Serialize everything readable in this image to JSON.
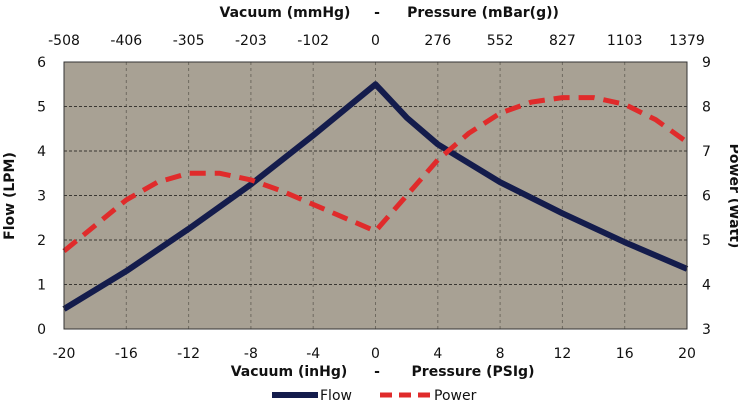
{
  "chart_data": {
    "type": "line",
    "top_axis": {
      "left_label": "Vacuum (mmHg)",
      "separator": "-",
      "right_label": "Pressure (mBar(g))",
      "ticks": [
        "-508",
        "-406",
        "-305",
        "-203",
        "-102",
        "0",
        "276",
        "552",
        "827",
        "1103",
        "1379"
      ]
    },
    "bottom_axis": {
      "left_label": "Vacuum (inHg)",
      "separator": "-",
      "right_label": "Pressure (PSIg)",
      "xlim": [
        -20,
        20
      ],
      "ticks": [
        -20,
        -16,
        -12,
        -8,
        -4,
        0,
        4,
        8,
        12,
        16,
        20
      ]
    },
    "left_axis": {
      "label": "Flow (LPM)",
      "ylim": [
        0,
        6
      ],
      "ticks": [
        0,
        1,
        2,
        3,
        4,
        5,
        6
      ]
    },
    "right_axis": {
      "label": "Power (Watt)",
      "ylim": [
        3,
        9
      ],
      "ticks": [
        3,
        4,
        5,
        6,
        7,
        8,
        9
      ]
    },
    "grid": true,
    "background_color": "#a8a194",
    "legend_position": "bottom-center",
    "series": [
      {
        "name": "Flow",
        "axis": "left",
        "color": "#141c4c",
        "style": "solid",
        "x": [
          -20,
          -16,
          -12,
          -8,
          -4,
          0,
          2,
          4,
          8,
          12,
          16,
          20
        ],
        "y": [
          0.45,
          1.3,
          2.25,
          3.25,
          4.35,
          5.5,
          4.75,
          4.15,
          3.3,
          2.6,
          1.95,
          1.35
        ]
      },
      {
        "name": "Power",
        "axis": "right",
        "color": "#e02b2b",
        "style": "dashed",
        "x": [
          -20,
          -16,
          -14,
          -12,
          -10,
          -8,
          -6,
          -4,
          -2,
          0,
          2,
          4,
          6,
          8,
          10,
          12,
          14,
          16,
          18,
          20
        ],
        "y": [
          4.75,
          5.9,
          6.3,
          6.5,
          6.5,
          6.35,
          6.1,
          5.8,
          5.5,
          5.2,
          6.0,
          6.8,
          7.4,
          7.85,
          8.1,
          8.2,
          8.2,
          8.05,
          7.7,
          7.2
        ]
      }
    ]
  }
}
